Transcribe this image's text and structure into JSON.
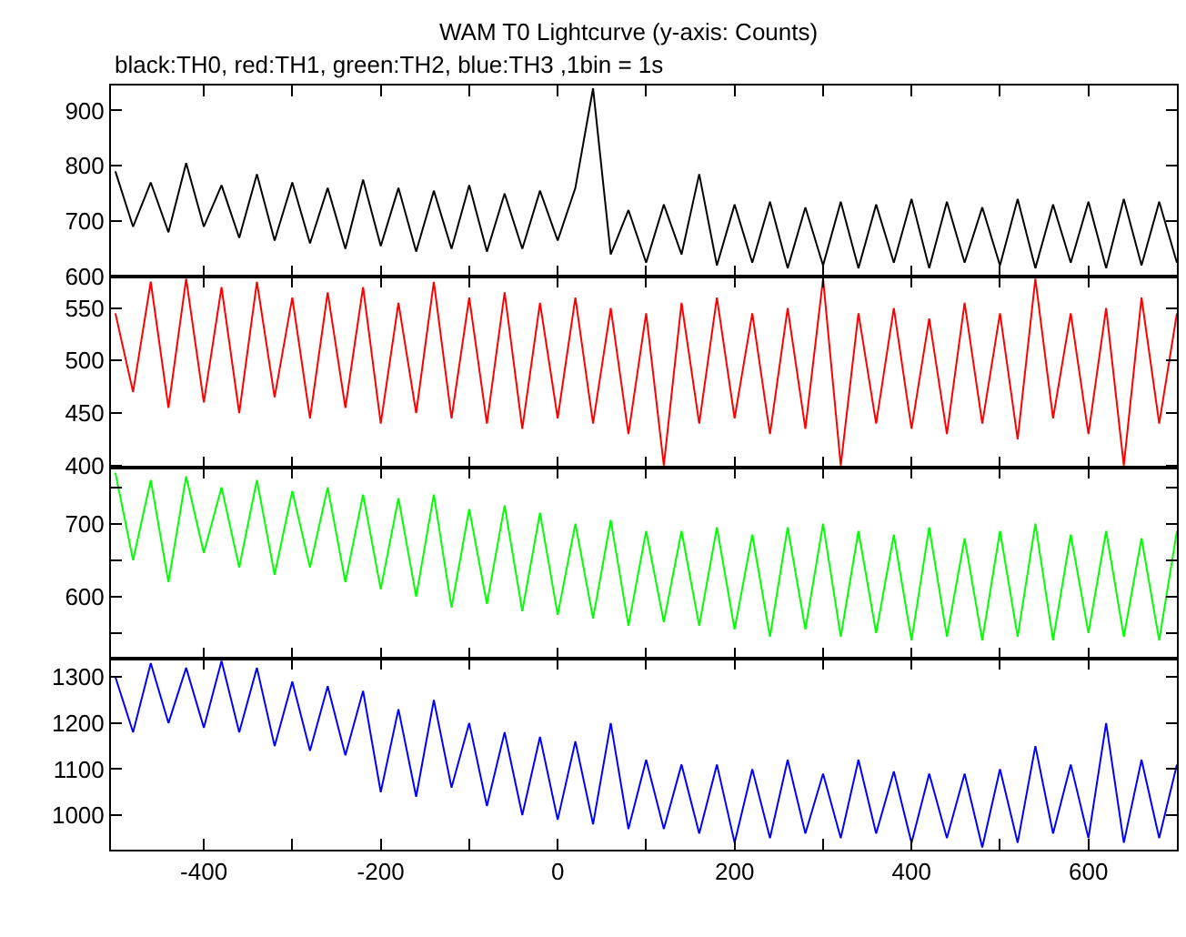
{
  "chart_data": [
    {
      "type": "line",
      "title": "WAM T0 Lightcurve (y-axis: Counts)",
      "subtitle": "black:TH0, red:TH1, green:TH2, blue:TH3 ,1bin = 1s",
      "x": [
        -500,
        -480,
        -460,
        -440,
        -420,
        -400,
        -380,
        -360,
        -340,
        -320,
        -300,
        -280,
        -260,
        -240,
        -220,
        -200,
        -180,
        -160,
        -140,
        -120,
        -100,
        -80,
        -60,
        -40,
        -20,
        0,
        20,
        40,
        60,
        80,
        100,
        120,
        140,
        160,
        180,
        200,
        220,
        240,
        260,
        280,
        300,
        320,
        340,
        360,
        380,
        400,
        420,
        440,
        460,
        480,
        500,
        520,
        540,
        560,
        580,
        600,
        620,
        640,
        660,
        680,
        700
      ],
      "series": [
        {
          "color": "#000000",
          "values": [
            790,
            690,
            770,
            680,
            805,
            690,
            765,
            670,
            785,
            665,
            770,
            660,
            760,
            650,
            775,
            655,
            760,
            645,
            755,
            650,
            765,
            645,
            750,
            650,
            755,
            665,
            760,
            940,
            640,
            720,
            625,
            730,
            640,
            785,
            620,
            730,
            625,
            735,
            615,
            725,
            620,
            735,
            615,
            730,
            625,
            740,
            615,
            735,
            625,
            725,
            620,
            740,
            615,
            730,
            625,
            735,
            615,
            740,
            620,
            735,
            625
          ]
        }
      ],
      "xlim": [
        -505,
        700
      ],
      "xticks": [
        -400,
        -200,
        0,
        200,
        400,
        600,
        {
          "value": -300,
          "label": null
        },
        {
          "value": -100,
          "label": null
        },
        {
          "value": 100,
          "label": null
        },
        {
          "value": 300,
          "label": null
        },
        {
          "value": 500,
          "label": null
        }
      ],
      "ylim": [
        600,
        945
      ],
      "yticks": [
        600,
        700,
        800,
        900
      ],
      "tick_labels": "y"
    },
    {
      "type": "line",
      "x": [
        -500,
        -480,
        -460,
        -440,
        -420,
        -400,
        -380,
        -360,
        -340,
        -320,
        -300,
        -280,
        -260,
        -240,
        -220,
        -200,
        -180,
        -160,
        -140,
        -120,
        -100,
        -80,
        -60,
        -40,
        -20,
        0,
        20,
        40,
        60,
        80,
        100,
        120,
        140,
        160,
        180,
        200,
        220,
        240,
        260,
        280,
        300,
        320,
        340,
        360,
        380,
        400,
        420,
        440,
        460,
        480,
        500,
        520,
        540,
        560,
        580,
        600,
        620,
        640,
        660,
        680,
        700
      ],
      "series": [
        {
          "color": "#ff0000",
          "values": [
            545,
            470,
            575,
            455,
            578,
            460,
            570,
            450,
            575,
            465,
            560,
            445,
            565,
            455,
            570,
            440,
            555,
            450,
            575,
            445,
            560,
            440,
            565,
            435,
            555,
            445,
            560,
            440,
            550,
            430,
            545,
            400,
            555,
            440,
            560,
            445,
            545,
            430,
            550,
            435,
            578,
            400,
            545,
            440,
            550,
            435,
            540,
            430,
            555,
            440,
            545,
            425,
            578,
            445,
            545,
            430,
            550,
            400,
            560,
            440,
            545
          ]
        }
      ],
      "xlim": [
        -505,
        700
      ],
      "xticks": [
        -400,
        -200,
        0,
        200,
        400,
        600,
        {
          "value": -300,
          "label": null
        },
        {
          "value": -100,
          "label": null
        },
        {
          "value": 100,
          "label": null
        },
        {
          "value": 300,
          "label": null
        },
        {
          "value": 500,
          "label": null
        }
      ],
      "ylim": [
        398,
        580
      ],
      "yticks": [
        400,
        450,
        500,
        550
      ],
      "tick_labels": "y"
    },
    {
      "type": "line",
      "x": [
        -500,
        -480,
        -460,
        -440,
        -420,
        -400,
        -380,
        -360,
        -340,
        -320,
        -300,
        -280,
        -260,
        -240,
        -220,
        -200,
        -180,
        -160,
        -140,
        -120,
        -100,
        -80,
        -60,
        -40,
        -20,
        0,
        20,
        40,
        60,
        80,
        100,
        120,
        140,
        160,
        180,
        200,
        220,
        240,
        260,
        280,
        300,
        320,
        340,
        360,
        380,
        400,
        420,
        440,
        460,
        480,
        500,
        520,
        540,
        560,
        580,
        600,
        620,
        640,
        660,
        680,
        700
      ],
      "series": [
        {
          "color": "#00ff00",
          "values": [
            770,
            650,
            760,
            620,
            765,
            660,
            750,
            640,
            760,
            630,
            745,
            640,
            750,
            620,
            740,
            610,
            735,
            600,
            740,
            585,
            720,
            590,
            725,
            580,
            715,
            575,
            700,
            570,
            705,
            560,
            690,
            565,
            690,
            560,
            695,
            555,
            685,
            545,
            695,
            555,
            700,
            545,
            690,
            550,
            685,
            540,
            695,
            545,
            680,
            540,
            690,
            545,
            700,
            540,
            685,
            550,
            690,
            545,
            680,
            540,
            690
          ]
        }
      ],
      "xlim": [
        -505,
        700
      ],
      "xticks": [
        -400,
        -200,
        0,
        200,
        400,
        600,
        {
          "value": -300,
          "label": null
        },
        {
          "value": -100,
          "label": null
        },
        {
          "value": 100,
          "label": null
        },
        {
          "value": 300,
          "label": null
        },
        {
          "value": 500,
          "label": null
        }
      ],
      "ylim": [
        515,
        777
      ],
      "yticks": [
        600,
        700,
        {
          "value": 550,
          "label": null
        },
        {
          "value": 650,
          "label": null
        },
        {
          "value": 750,
          "label": null
        }
      ],
      "tick_labels": "y"
    },
    {
      "type": "line",
      "x": [
        -500,
        -480,
        -460,
        -440,
        -420,
        -400,
        -380,
        -360,
        -340,
        -320,
        -300,
        -280,
        -260,
        -240,
        -220,
        -200,
        -180,
        -160,
        -140,
        -120,
        -100,
        -80,
        -60,
        -40,
        -20,
        0,
        20,
        40,
        60,
        80,
        100,
        120,
        140,
        160,
        180,
        200,
        220,
        240,
        260,
        280,
        300,
        320,
        340,
        360,
        380,
        400,
        420,
        440,
        460,
        480,
        500,
        520,
        540,
        560,
        580,
        600,
        620,
        640,
        660,
        680,
        700
      ],
      "series": [
        {
          "color": "#0000ff",
          "values": [
            1300,
            1180,
            1330,
            1200,
            1320,
            1190,
            1335,
            1180,
            1320,
            1150,
            1290,
            1140,
            1280,
            1130,
            1270,
            1050,
            1230,
            1040,
            1250,
            1060,
            1200,
            1020,
            1180,
            1000,
            1170,
            990,
            1160,
            980,
            1200,
            970,
            1120,
            970,
            1110,
            960,
            1110,
            940,
            1100,
            950,
            1120,
            960,
            1090,
            950,
            1120,
            960,
            1095,
            940,
            1090,
            950,
            1090,
            930,
            1100,
            940,
            1150,
            960,
            1110,
            950,
            1200,
            940,
            1120,
            950,
            1110
          ]
        }
      ],
      "xlim": [
        -505,
        700
      ],
      "xticks": [
        -400,
        -200,
        0,
        200,
        400,
        600,
        {
          "value": -300,
          "label": null
        },
        {
          "value": -100,
          "label": null
        },
        {
          "value": 100,
          "label": null
        },
        {
          "value": 300,
          "label": null
        },
        {
          "value": 500,
          "label": null
        }
      ],
      "ylim": [
        925,
        1340
      ],
      "yticks": [
        1000,
        1100,
        1200,
        1300
      ]
    }
  ]
}
